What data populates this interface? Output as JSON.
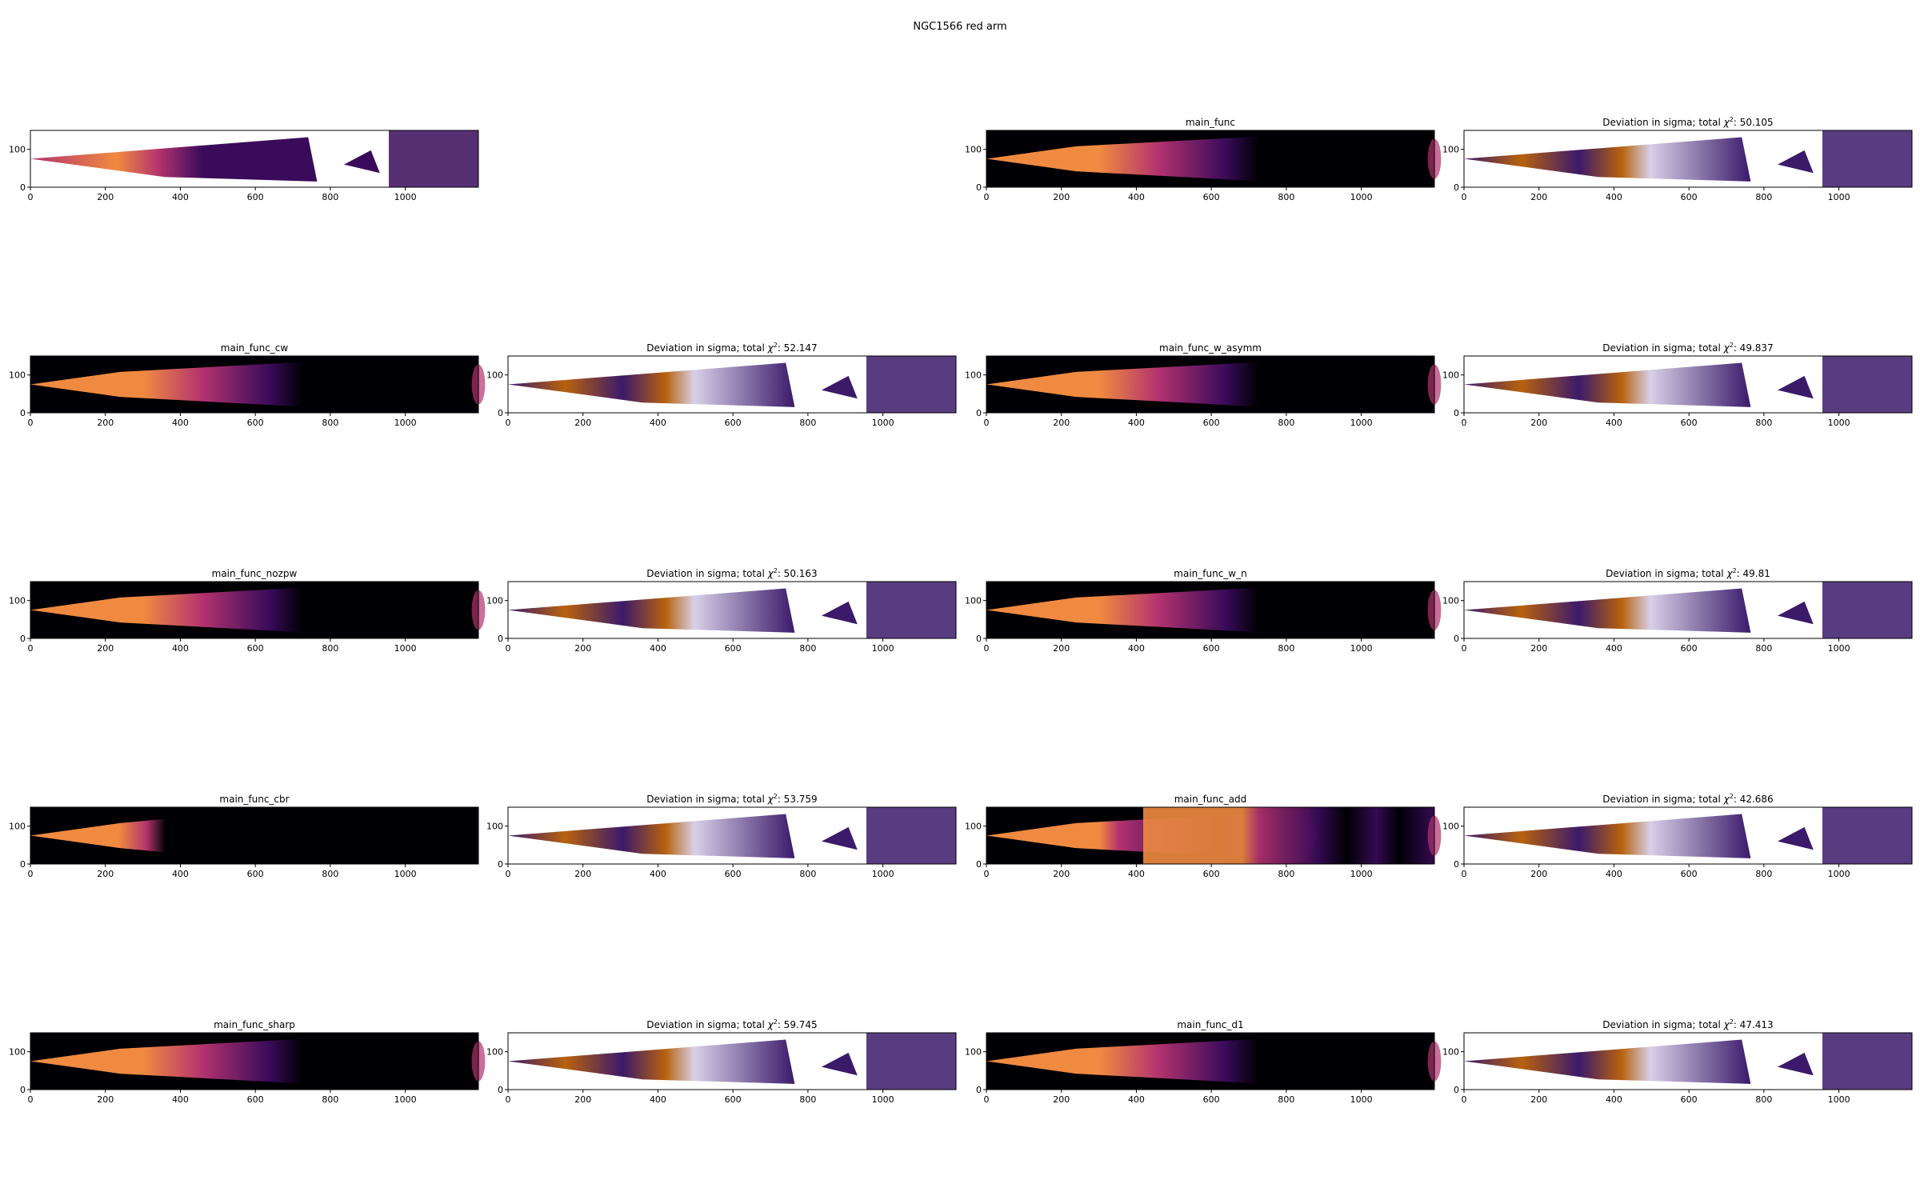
{
  "figure": {
    "suptitle": "NGC1566 red arm",
    "colors": {
      "bright": "#f08a40",
      "mid": "#b2326e",
      "dark": "#3a0b5a",
      "black": "#000004",
      "dev_warm": "#b8620e",
      "dev_cold": "#3b1a6a",
      "dev_light": "#d8d0e8"
    }
  },
  "chart_data": [
    {
      "id": "data",
      "type": "heatmap",
      "variant": "data",
      "title": "",
      "xticks": [
        0,
        200,
        400,
        600,
        800,
        1000
      ],
      "yticks": [
        0,
        100
      ],
      "xlim": [
        0,
        1195
      ],
      "ylim": [
        0,
        150
      ]
    },
    {
      "id": "main_func",
      "type": "heatmap",
      "variant": "model",
      "title": "main_func",
      "xticks": [
        0,
        200,
        400,
        600,
        800,
        1000
      ],
      "yticks": [
        0,
        100
      ],
      "xlim": [
        0,
        1195
      ],
      "ylim": [
        0,
        150
      ]
    },
    {
      "id": "dev_main_func",
      "type": "heatmap",
      "variant": "deviation",
      "title_prefix": "Deviation in sigma; total ",
      "chi_symbol": "χ",
      "chi_sup": "2",
      "chi_value": ": 50.105",
      "xticks": [
        0,
        200,
        400,
        600,
        800,
        1000
      ],
      "yticks": [
        0,
        100
      ],
      "xlim": [
        0,
        1195
      ],
      "ylim": [
        0,
        150
      ]
    },
    {
      "id": "main_func_cw",
      "type": "heatmap",
      "variant": "model",
      "title": "main_func_cw",
      "xticks": [
        0,
        200,
        400,
        600,
        800,
        1000
      ],
      "yticks": [
        0,
        100
      ],
      "xlim": [
        0,
        1195
      ],
      "ylim": [
        0,
        150
      ]
    },
    {
      "id": "dev_main_func_cw",
      "type": "heatmap",
      "variant": "deviation",
      "title_prefix": "Deviation in sigma; total ",
      "chi_symbol": "χ",
      "chi_sup": "2",
      "chi_value": ": 52.147",
      "xticks": [
        0,
        200,
        400,
        600,
        800,
        1000
      ],
      "yticks": [
        0,
        100
      ],
      "xlim": [
        0,
        1195
      ],
      "ylim": [
        0,
        150
      ]
    },
    {
      "id": "main_func_w_asymm",
      "type": "heatmap",
      "variant": "model",
      "title": "main_func_w_asymm",
      "xticks": [
        0,
        200,
        400,
        600,
        800,
        1000
      ],
      "yticks": [
        0,
        100
      ],
      "xlim": [
        0,
        1195
      ],
      "ylim": [
        0,
        150
      ]
    },
    {
      "id": "dev_main_func_w_asymm",
      "type": "heatmap",
      "variant": "deviation",
      "title_prefix": "Deviation in sigma; total ",
      "chi_symbol": "χ",
      "chi_sup": "2",
      "chi_value": ": 49.837",
      "xticks": [
        0,
        200,
        400,
        600,
        800,
        1000
      ],
      "yticks": [
        0,
        100
      ],
      "xlim": [
        0,
        1195
      ],
      "ylim": [
        0,
        150
      ]
    },
    {
      "id": "main_func_nozpw",
      "type": "heatmap",
      "variant": "model",
      "title": "main_func_nozpw",
      "xticks": [
        0,
        200,
        400,
        600,
        800,
        1000
      ],
      "yticks": [
        0,
        100
      ],
      "xlim": [
        0,
        1195
      ],
      "ylim": [
        0,
        150
      ]
    },
    {
      "id": "dev_main_func_nozpw",
      "type": "heatmap",
      "variant": "deviation",
      "title_prefix": "Deviation in sigma; total ",
      "chi_symbol": "χ",
      "chi_sup": "2",
      "chi_value": ": 50.163",
      "xticks": [
        0,
        200,
        400,
        600,
        800,
        1000
      ],
      "yticks": [
        0,
        100
      ],
      "xlim": [
        0,
        1195
      ],
      "ylim": [
        0,
        150
      ]
    },
    {
      "id": "main_func_w_n",
      "type": "heatmap",
      "variant": "model",
      "title": "main_func_w_n",
      "xticks": [
        0,
        200,
        400,
        600,
        800,
        1000
      ],
      "yticks": [
        0,
        100
      ],
      "xlim": [
        0,
        1195
      ],
      "ylim": [
        0,
        150
      ]
    },
    {
      "id": "dev_main_func_w_n",
      "type": "heatmap",
      "variant": "deviation",
      "title_prefix": "Deviation in sigma; total ",
      "chi_symbol": "χ",
      "chi_sup": "2",
      "chi_value": ": 49.81",
      "xticks": [
        0,
        200,
        400,
        600,
        800,
        1000
      ],
      "yticks": [
        0,
        100
      ],
      "xlim": [
        0,
        1195
      ],
      "ylim": [
        0,
        150
      ]
    },
    {
      "id": "main_func_cbr",
      "type": "heatmap",
      "variant": "model",
      "title": "main_func_cbr",
      "xticks": [
        0,
        200,
        400,
        600,
        800,
        1000
      ],
      "yticks": [
        0,
        100
      ],
      "xlim": [
        0,
        1195
      ],
      "ylim": [
        0,
        150
      ]
    },
    {
      "id": "dev_main_func_cbr",
      "type": "heatmap",
      "variant": "deviation",
      "title_prefix": "Deviation in sigma; total ",
      "chi_symbol": "χ",
      "chi_sup": "2",
      "chi_value": ": 53.759",
      "xticks": [
        0,
        200,
        400,
        600,
        800,
        1000
      ],
      "yticks": [
        0,
        100
      ],
      "xlim": [
        0,
        1195
      ],
      "ylim": [
        0,
        150
      ]
    },
    {
      "id": "main_func_add",
      "type": "heatmap",
      "variant": "model",
      "title": "main_func_add",
      "xticks": [
        0,
        200,
        400,
        600,
        800,
        1000
      ],
      "yticks": [
        0,
        100
      ],
      "xlim": [
        0,
        1195
      ],
      "ylim": [
        0,
        150
      ]
    },
    {
      "id": "dev_main_func_add",
      "type": "heatmap",
      "variant": "deviation",
      "title_prefix": "Deviation in sigma; total ",
      "chi_symbol": "χ",
      "chi_sup": "2",
      "chi_value": ": 42.686",
      "xticks": [
        0,
        200,
        400,
        600,
        800,
        1000
      ],
      "yticks": [
        0,
        100
      ],
      "xlim": [
        0,
        1195
      ],
      "ylim": [
        0,
        150
      ]
    },
    {
      "id": "main_func_sharp",
      "type": "heatmap",
      "variant": "model",
      "title": "main_func_sharp",
      "xticks": [
        0,
        200,
        400,
        600,
        800,
        1000
      ],
      "yticks": [
        0,
        100
      ],
      "xlim": [
        0,
        1195
      ],
      "ylim": [
        0,
        150
      ]
    },
    {
      "id": "dev_main_func_sharp",
      "type": "heatmap",
      "variant": "deviation",
      "title_prefix": "Deviation in sigma; total ",
      "chi_symbol": "χ",
      "chi_sup": "2",
      "chi_value": ": 59.745",
      "xticks": [
        0,
        200,
        400,
        600,
        800,
        1000
      ],
      "yticks": [
        0,
        100
      ],
      "xlim": [
        0,
        1195
      ],
      "ylim": [
        0,
        150
      ]
    },
    {
      "id": "main_func_d1",
      "type": "heatmap",
      "variant": "model",
      "title": "main_func_d1",
      "xticks": [
        0,
        200,
        400,
        600,
        800,
        1000
      ],
      "yticks": [
        0,
        100
      ],
      "xlim": [
        0,
        1195
      ],
      "ylim": [
        0,
        150
      ]
    },
    {
      "id": "dev_main_func_d1",
      "type": "heatmap",
      "variant": "deviation",
      "title_prefix": "Deviation in sigma; total ",
      "chi_symbol": "χ",
      "chi_sup": "2",
      "chi_value": ": 47.413",
      "xticks": [
        0,
        200,
        400,
        600,
        800,
        1000
      ],
      "yticks": [
        0,
        100
      ],
      "xlim": [
        0,
        1195
      ],
      "ylim": [
        0,
        150
      ]
    }
  ]
}
